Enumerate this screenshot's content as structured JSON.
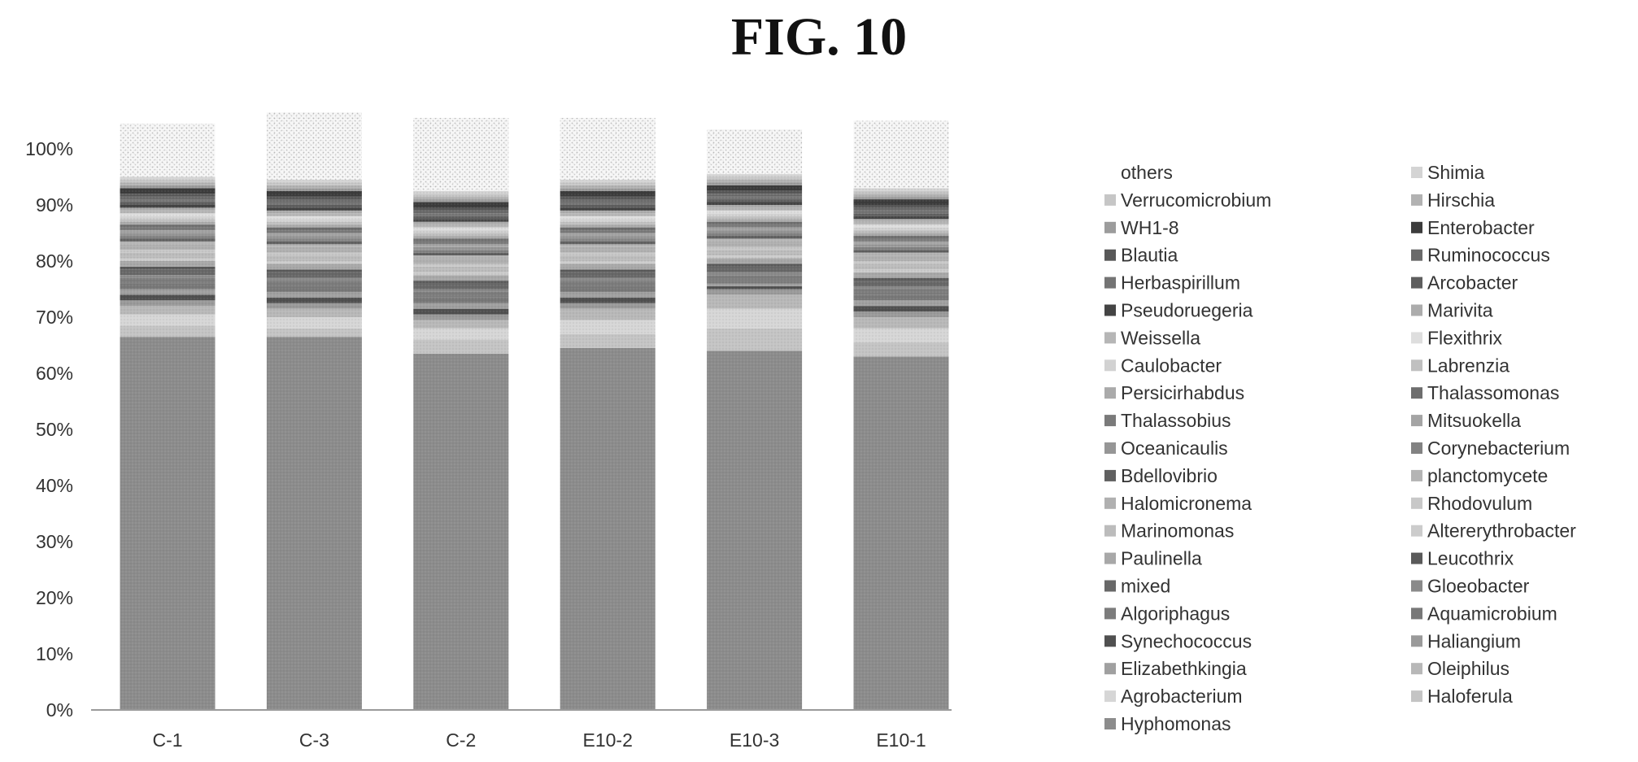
{
  "figure_title": "FIG. 10",
  "chart_data": {
    "type": "bar",
    "stacked": true,
    "normalized": true,
    "title": "",
    "xlabel": "",
    "ylabel": "",
    "ylim": [
      0,
      100
    ],
    "y_ticks": [
      "0%",
      "10%",
      "20%",
      "30%",
      "40%",
      "50%",
      "60%",
      "70%",
      "80%",
      "90%",
      "100%"
    ],
    "grid": false,
    "legend_position": "right",
    "categories": [
      "C-1",
      "C-3",
      "C-2",
      "E10-2",
      "E10-3",
      "E10-1"
    ],
    "legend": [
      "others",
      "Shimia",
      "Verrucomicrobium",
      "Hirschia",
      "WH1-8",
      "Enterobacter",
      "Blautia",
      "Ruminococcus",
      "Herbaspirillum",
      "Arcobacter",
      "Pseudoruegeria",
      "Marivita",
      "Weissella",
      "Flexithrix",
      "Caulobacter",
      "Labrenzia",
      "Persicirhabdus",
      "Thalassomonas",
      "Thalassobius",
      "Mitsuokella",
      "Oceanicaulis",
      "Corynebacterium",
      "Bdellovibrio",
      "planctomycete",
      "Halomicronema",
      "Rhodovulum",
      "Marinomonas",
      "Altererythrobacter",
      "Paulinella",
      "Leucothrix",
      "mixed",
      "Gloeobacter",
      "Algoriphagus",
      "Aquamicrobium",
      "Synechococcus",
      "Haliangium",
      "Elizabethkingia",
      "Oleiphilus",
      "Agrobacterium",
      "Haloferula",
      "Hyphomonas"
    ],
    "series": [
      {
        "name": "Hyphomonas",
        "values": [
          66.5,
          66.5,
          63.5,
          64.5,
          64.0,
          63.0
        ],
        "color": "#8c8c8c"
      },
      {
        "name": "Haloferula",
        "values": [
          2.0,
          1.5,
          2.5,
          2.5,
          4.0,
          2.5
        ],
        "color": "#c4c4c4"
      },
      {
        "name": "Agrobacterium",
        "values": [
          2.0,
          2.0,
          2.0,
          2.5,
          3.5,
          2.5
        ],
        "color": "#d6d6d6"
      },
      {
        "name": "Oleiphilus",
        "values": [
          1.5,
          1.5,
          1.5,
          2.0,
          2.5,
          2.0
        ],
        "color": "#b8b8b8"
      },
      {
        "name": "Haliangium",
        "values": [
          1.0,
          1.0,
          1.0,
          1.0,
          1.0,
          1.0
        ],
        "color": "#9a9a9a"
      },
      {
        "name": "Synechococcus",
        "values": [
          1.0,
          1.0,
          1.0,
          1.0,
          0.5,
          1.0
        ],
        "color": "#505050"
      },
      {
        "name": "Elizabethkingia",
        "values": [
          1.0,
          1.0,
          1.0,
          1.0,
          0.5,
          1.0
        ],
        "color": "#a0a0a0"
      },
      {
        "name": "Aquamicrobium",
        "values": [
          1.0,
          1.0,
          1.0,
          1.0,
          0.5,
          1.0
        ],
        "color": "#787878"
      },
      {
        "name": "Algoriphagus",
        "values": [
          1.0,
          1.0,
          1.0,
          1.0,
          1.0,
          1.0
        ],
        "color": "#7c7c7c"
      },
      {
        "name": "Gloeobacter",
        "values": [
          0.5,
          0.5,
          0.5,
          0.5,
          0.5,
          0.5
        ],
        "color": "#8a8a8a"
      },
      {
        "name": "mixed",
        "values": [
          1.0,
          1.0,
          1.0,
          1.0,
          1.0,
          1.0
        ],
        "color": "#686868"
      },
      {
        "name": "Leucothrix",
        "values": [
          0.5,
          0.5,
          0.5,
          0.5,
          0.5,
          0.5
        ],
        "color": "#5a5a5a"
      },
      {
        "name": "Paulinella",
        "values": [
          1.0,
          1.0,
          1.0,
          1.0,
          1.0,
          1.0
        ],
        "color": "#a8a8a8"
      },
      {
        "name": "Altererythrobacter",
        "values": [
          0.5,
          0.5,
          0.5,
          0.5,
          0.5,
          0.5
        ],
        "color": "#cccccc"
      },
      {
        "name": "Marinomonas",
        "values": [
          1.0,
          1.0,
          1.0,
          1.0,
          1.0,
          1.0
        ],
        "color": "#bcbcbc"
      },
      {
        "name": "Rhodovulum",
        "values": [
          0.5,
          0.5,
          0.5,
          0.5,
          0.5,
          0.5
        ],
        "color": "#c8c8c8"
      },
      {
        "name": "Halomicronema",
        "values": [
          1.0,
          1.0,
          1.0,
          1.0,
          1.0,
          1.0
        ],
        "color": "#b0b0b0"
      },
      {
        "name": "planctomycete",
        "values": [
          0.5,
          0.5,
          0.5,
          0.5,
          0.5,
          0.5
        ],
        "color": "#b4b4b4"
      },
      {
        "name": "Bdellovibrio",
        "values": [
          0.5,
          0.5,
          0.5,
          0.5,
          0.5,
          0.5
        ],
        "color": "#606060"
      },
      {
        "name": "Corynebacterium",
        "values": [
          0.5,
          0.5,
          0.5,
          0.5,
          0.5,
          0.5
        ],
        "color": "#828282"
      },
      {
        "name": "Oceanicaulis",
        "values": [
          0.5,
          0.5,
          0.5,
          0.5,
          0.5,
          0.5
        ],
        "color": "#969696"
      },
      {
        "name": "Mitsuokella",
        "values": [
          0.5,
          0.5,
          0.5,
          0.5,
          0.5,
          0.5
        ],
        "color": "#a4a4a4"
      },
      {
        "name": "Thalassobius",
        "values": [
          0.5,
          0.5,
          0.5,
          0.5,
          0.5,
          0.5
        ],
        "color": "#7a7a7a"
      },
      {
        "name": "Thalassomonas",
        "values": [
          0.5,
          0.5,
          0.5,
          0.5,
          0.5,
          0.5
        ],
        "color": "#6e6e6e"
      },
      {
        "name": "Persicirhabdus",
        "values": [
          0.5,
          0.5,
          0.5,
          0.5,
          0.5,
          0.5
        ],
        "color": "#aaaaaa"
      },
      {
        "name": "Labrenzia",
        "values": [
          0.5,
          0.5,
          0.5,
          0.5,
          0.5,
          0.5
        ],
        "color": "#c0c0c0"
      },
      {
        "name": "Caulobacter",
        "values": [
          0.5,
          0.5,
          0.5,
          0.5,
          0.5,
          0.5
        ],
        "color": "#d2d2d2"
      },
      {
        "name": "Flexithrix",
        "values": [
          0.5,
          0.5,
          0.5,
          0.5,
          0.5,
          0.5
        ],
        "color": "#dedede"
      },
      {
        "name": "Weissella",
        "values": [
          0.5,
          0.5,
          0.5,
          0.5,
          0.5,
          0.5
        ],
        "color": "#b6b6b6"
      },
      {
        "name": "Marivita",
        "values": [
          0.5,
          0.5,
          0.5,
          0.5,
          0.5,
          0.5
        ],
        "color": "#acacac"
      },
      {
        "name": "Pseudoruegeria",
        "values": [
          0.5,
          0.5,
          0.5,
          0.5,
          0.5,
          0.5
        ],
        "color": "#444444"
      },
      {
        "name": "Arcobacter",
        "values": [
          0.5,
          0.5,
          0.5,
          0.5,
          0.5,
          0.5
        ],
        "color": "#5e5e5e"
      },
      {
        "name": "Herbaspirillum",
        "values": [
          0.5,
          0.5,
          0.5,
          0.5,
          0.5,
          0.5
        ],
        "color": "#747474"
      },
      {
        "name": "Ruminococcus",
        "values": [
          0.5,
          0.5,
          0.5,
          0.5,
          0.5,
          0.5
        ],
        "color": "#6a6a6a"
      },
      {
        "name": "Blautia",
        "values": [
          0.5,
          0.5,
          0.5,
          0.5,
          0.5,
          0.5
        ],
        "color": "#585858"
      },
      {
        "name": "Enterobacter",
        "values": [
          1.0,
          1.0,
          1.0,
          1.0,
          1.0,
          1.0
        ],
        "color": "#3c3c3c"
      },
      {
        "name": "WH1-8",
        "values": [
          0.5,
          0.5,
          0.5,
          0.5,
          0.5,
          0.5
        ],
        "color": "#9c9c9c"
      },
      {
        "name": "Hirschia",
        "values": [
          0.5,
          0.5,
          0.5,
          0.5,
          0.5,
          0.5
        ],
        "color": "#b2b2b2"
      },
      {
        "name": "Verrucomicrobium",
        "values": [
          0.5,
          0.5,
          0.5,
          0.5,
          0.5,
          0.5
        ],
        "color": "#c6c6c6"
      },
      {
        "name": "Shimia",
        "values": [
          0.5,
          0.5,
          0.5,
          0.5,
          0.5,
          0.5
        ],
        "color": "#d4d4d4"
      },
      {
        "name": "others",
        "values": [
          9.5,
          12.0,
          13.0,
          11.0,
          8.0,
          12.0
        ],
        "color": "#f4f4f4"
      }
    ]
  }
}
